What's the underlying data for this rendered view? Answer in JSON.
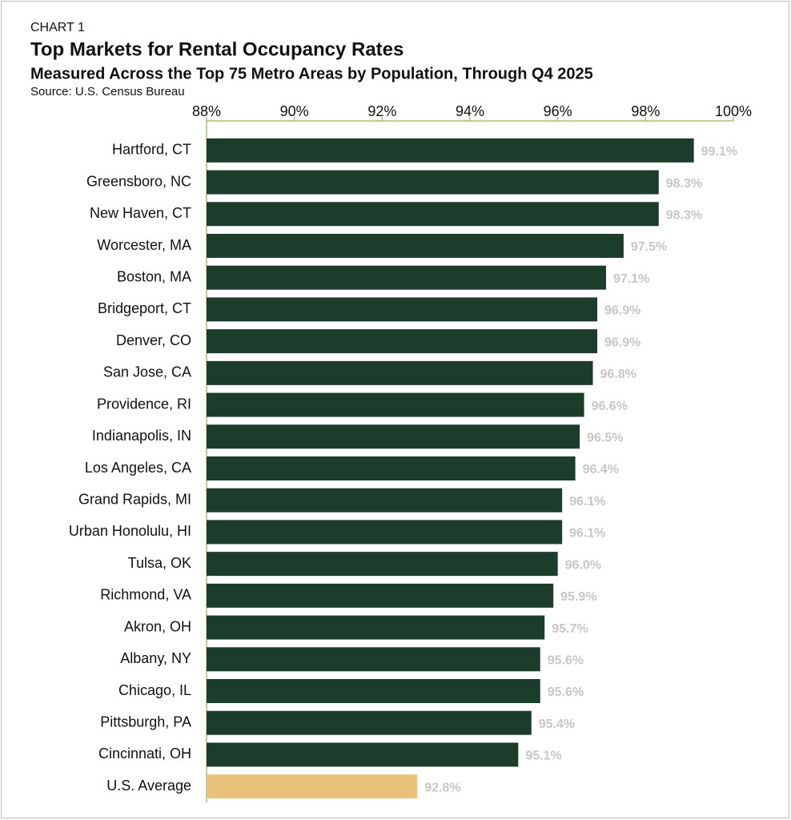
{
  "chart_data": {
    "type": "hbar",
    "label": "CHART 1",
    "title": "Top Markets for Rental Occupancy Rates",
    "subtitle": "Measured Across the Top 75 Metro Areas by Population, Through Q4 2025",
    "source": "Source: U.S. Census Bureau",
    "categories": [
      "Hartford, CT",
      "Greensboro, NC",
      "New Haven, CT",
      "Worcester, MA",
      "Boston, MA",
      "Bridgeport, CT",
      "Denver, CO",
      "San Jose, CA",
      "Providence, RI",
      "Indianapolis, IN",
      "Los Angeles, CA",
      "Grand Rapids, MI",
      "Urban Honolulu, HI",
      "Tulsa, OK",
      "Richmond, VA",
      "Akron, OH",
      "Albany, NY",
      "Chicago, IL",
      "Pittsburgh, PA",
      "Cincinnati, OH",
      "U.S. Average"
    ],
    "values": [
      99.1,
      98.3,
      98.3,
      97.5,
      97.1,
      96.9,
      96.9,
      96.8,
      96.6,
      96.5,
      96.4,
      96.1,
      96.1,
      96.0,
      95.9,
      95.7,
      95.6,
      95.6,
      95.4,
      95.1,
      92.8
    ],
    "value_labels": [
      "99.1%",
      "98.3%",
      "98.3%",
      "97.5%",
      "97.1%",
      "96.9%",
      "96.9%",
      "96.8%",
      "96.6%",
      "96.5%",
      "96.4%",
      "96.1%",
      "96.1%",
      "96.0%",
      "95.9%",
      "95.7%",
      "95.6%",
      "95.6%",
      "95.4%",
      "95.1%",
      "92.8%"
    ],
    "colors": [
      "#1c3d2c",
      "#1c3d2c",
      "#1c3d2c",
      "#1c3d2c",
      "#1c3d2c",
      "#1c3d2c",
      "#1c3d2c",
      "#1c3d2c",
      "#1c3d2c",
      "#1c3d2c",
      "#1c3d2c",
      "#1c3d2c",
      "#1c3d2c",
      "#1c3d2c",
      "#1c3d2c",
      "#1c3d2c",
      "#1c3d2c",
      "#1c3d2c",
      "#1c3d2c",
      "#1c3d2c",
      "#e8c27a"
    ],
    "xlim": [
      88,
      100
    ],
    "xticks": [
      {
        "value": 88,
        "label": "88%"
      },
      {
        "value": 90,
        "label": "90%"
      },
      {
        "value": 92,
        "label": "92%"
      },
      {
        "value": 94,
        "label": "94%"
      },
      {
        "value": 96,
        "label": "96%"
      },
      {
        "value": 98,
        "label": "98%"
      },
      {
        "value": 100,
        "label": "100%"
      }
    ]
  }
}
